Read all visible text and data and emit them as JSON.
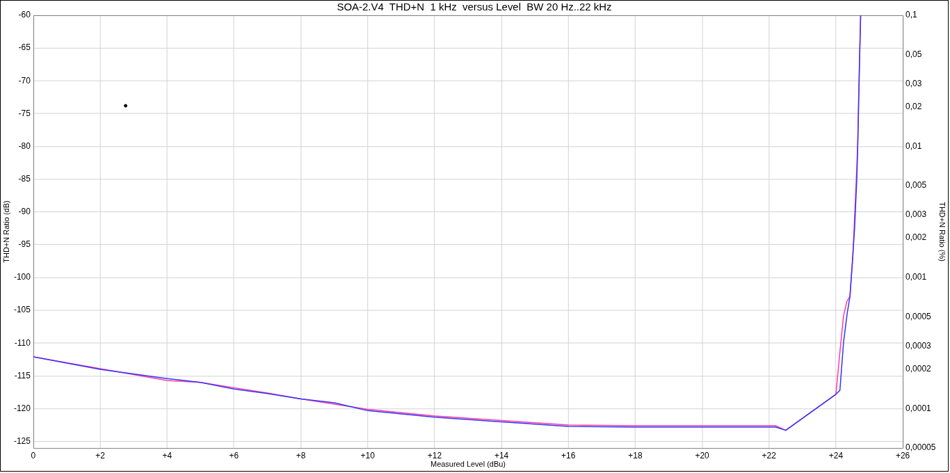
{
  "chart_data": {
    "type": "line",
    "title": "SOA-2.V4  THD+N  1 kHz  versus Level  BW 20 Hz..22 kHz",
    "xlabel": "Measured Level (dBu)",
    "ylabel": "THD+N Ratio (dB)",
    "y2label": "THD+N Ratio (%)",
    "xlim": [
      0,
      26
    ],
    "xticks": [
      0,
      {
        "value": 2,
        "label": "+2"
      },
      {
        "value": 4,
        "label": "+4"
      },
      {
        "value": 6,
        "label": "+6"
      },
      {
        "value": 8,
        "label": "+8"
      },
      {
        "value": 10,
        "label": "+10"
      },
      {
        "value": 12,
        "label": "+12"
      },
      {
        "value": 14,
        "label": "+14"
      },
      {
        "value": 16,
        "label": "+16"
      },
      {
        "value": 18,
        "label": "+18"
      },
      {
        "value": 20,
        "label": "+20"
      },
      {
        "value": 22,
        "label": "+22"
      },
      {
        "value": 24,
        "label": "+24"
      },
      {
        "value": 26,
        "label": "+26"
      }
    ],
    "ylim": [
      -126,
      -60
    ],
    "yticks": [
      -60,
      -65,
      -70,
      -75,
      -80,
      -85,
      -90,
      -95,
      -100,
      -105,
      -110,
      -115,
      -120,
      -125
    ],
    "y2lim": [
      5e-05,
      0.1
    ],
    "y2ticks": [
      {
        "value": 0.1,
        "label": "0,1"
      },
      {
        "value": 0.05,
        "label": "0,05"
      },
      {
        "value": 0.03,
        "label": "0,03"
      },
      {
        "value": 0.02,
        "label": "0,02"
      },
      {
        "value": 0.01,
        "label": "0,01"
      },
      {
        "value": 0.005,
        "label": "0,005"
      },
      {
        "value": 0.003,
        "label": "0,003"
      },
      {
        "value": 0.002,
        "label": "0,002"
      },
      {
        "value": 0.001,
        "label": "0,001"
      },
      {
        "value": 0.0005,
        "label": "0,0005"
      },
      {
        "value": 0.0003,
        "label": "0,0003"
      },
      {
        "value": 0.0002,
        "label": "0,0002"
      },
      {
        "value": 0.0001,
        "label": "0,0001"
      },
      {
        "value": 5e-05,
        "label": "0,00005"
      }
    ],
    "log": "y2",
    "grid": true,
    "series": [
      {
        "color": "#3434ff",
        "x": [
          0,
          2,
          4,
          5,
          6,
          7,
          8,
          9,
          10,
          12,
          14,
          16,
          18,
          20,
          22.2,
          22.5,
          24,
          24.12,
          24.23,
          24.34,
          24.42,
          24.49,
          24.56,
          24.63,
          24.66,
          24.7,
          24.74
        ],
        "values": [
          -112.1,
          -114.0,
          -115.4,
          -116.0,
          -117.0,
          -117.7,
          -118.5,
          -119.1,
          -120.3,
          -121.3,
          -122.0,
          -122.7,
          -122.8,
          -122.8,
          -122.8,
          -123.3,
          -117.8,
          -117.2,
          -109.8,
          -105.4,
          -102.9,
          -97.8,
          -92.4,
          -84.4,
          -78.6,
          -68.8,
          -60
        ]
      },
      {
        "color": "#ff3c9e",
        "x": [
          0,
          2,
          4,
          5,
          6,
          7,
          8,
          9,
          10,
          12,
          14,
          16,
          18,
          20,
          22.2,
          22.5,
          24,
          24.14,
          24.23,
          24.33,
          24.42,
          24.51,
          24.6,
          24.65,
          24.69,
          24.74
        ],
        "values": [
          -112.1,
          -113.9,
          -115.7,
          -116.0,
          -116.8,
          -117.6,
          -118.5,
          -119.3,
          -120.1,
          -121.1,
          -121.8,
          -122.5,
          -122.6,
          -122.6,
          -122.6,
          -123.3,
          -117.8,
          -110.3,
          -105.8,
          -103.6,
          -102.9,
          -96.5,
          -86.2,
          -80.0,
          -70.2,
          -60
        ]
      },
      {
        "type": "scatter",
        "color": "#000000",
        "x": [
          2.76
        ],
        "values": [
          -73.8
        ]
      }
    ]
  }
}
